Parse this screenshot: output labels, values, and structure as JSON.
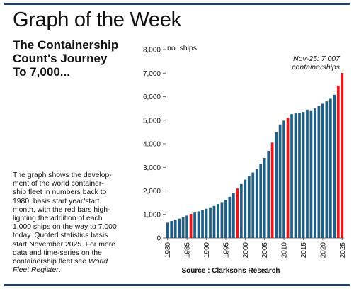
{
  "header": {
    "title": "Graph of the Week"
  },
  "headline": {
    "lines": [
      "The Containership",
      "Count's Journey",
      "To 7,000..."
    ]
  },
  "description": {
    "lines": [
      "The graph shows the develop-",
      "ment of the world container-",
      "ship fleet in numbers back to",
      "1980, basis start year/start",
      "month, with the red bars high-",
      "lighting the addition of each",
      "1,000 ships on the way to 7,000",
      "today. Quoted statistics basis",
      "start November 2025. For more",
      "data and time-series on the",
      "containership fleet see "
    ],
    "reference_1": "World",
    "reference_2": "Fleet Register",
    "end": "."
  },
  "colors": {
    "frame": "#1f3e6b",
    "bar": "#1f5f86",
    "highlight": "#e8151b"
  },
  "chart_data": {
    "type": "bar",
    "ylabel": "no. ships",
    "ylim": [
      0,
      8000
    ],
    "y_ticks": [
      "0",
      "1,000",
      "2,000",
      "3,000",
      "4,000",
      "5,000",
      "6,000",
      "7,000",
      "8,000"
    ],
    "x_ticks": [
      "1980",
      "1985",
      "1990",
      "1995",
      "2000",
      "2005",
      "2010",
      "2015",
      "2020",
      "2025"
    ],
    "categories": [
      1980,
      1981,
      1982,
      1983,
      1984,
      1985,
      1986,
      1987,
      1988,
      1989,
      1990,
      1991,
      1992,
      1993,
      1994,
      1995,
      1996,
      1997,
      1998,
      1999,
      2000,
      2001,
      2002,
      2003,
      2004,
      2005,
      2006,
      2007,
      2008,
      2009,
      2010,
      2011,
      2012,
      2013,
      2014,
      2015,
      2016,
      2017,
      2018,
      2019,
      2020,
      2021,
      2022,
      2023,
      2024,
      2025
    ],
    "values": [
      650,
      720,
      770,
      820,
      880,
      950,
      1020,
      1080,
      1130,
      1180,
      1240,
      1300,
      1360,
      1440,
      1520,
      1620,
      1750,
      1900,
      2100,
      2290,
      2480,
      2640,
      2780,
      2930,
      3150,
      3400,
      3700,
      4050,
      4480,
      4820,
      4980,
      5100,
      5260,
      5290,
      5310,
      5350,
      5450,
      5420,
      5500,
      5610,
      5700,
      5800,
      5910,
      6080,
      6470,
      7007
    ],
    "highlight_categories": [
      1986,
      1998,
      2007,
      2011,
      2024,
      2025
    ],
    "annotation": [
      "Nov-25: 7,007",
      "containerships"
    ],
    "source": "Source : Clarksons Research",
    "grid": false
  }
}
